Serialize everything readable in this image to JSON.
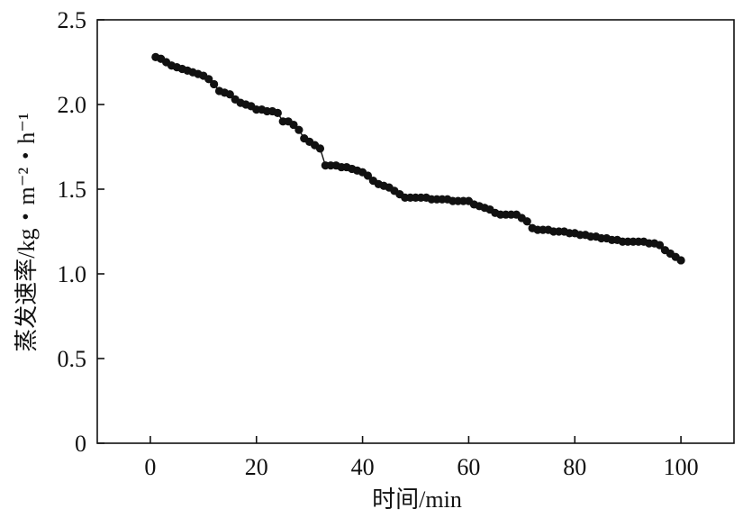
{
  "chart_data": {
    "type": "scatter",
    "xlabel": "时间/min",
    "ylabel": "蒸发速率/kg・m⁻²・h⁻¹",
    "xlim": [
      -10,
      110
    ],
    "ylim": [
      0,
      2.5
    ],
    "x_ticks": [
      0,
      20,
      40,
      60,
      80,
      100
    ],
    "y_ticks": [
      0,
      0.5,
      1.0,
      1.5,
      2.0,
      2.5
    ],
    "x_tick_labels": [
      "0",
      "20",
      "40",
      "60",
      "80",
      "100"
    ],
    "y_tick_labels": [
      "0",
      "0.5",
      "1.0",
      "1.5",
      "2.0",
      "2.5"
    ],
    "grid": false,
    "series": [
      {
        "color": "#111111",
        "marker": "circle",
        "line": true,
        "points": [
          [
            1,
            2.28
          ],
          [
            2,
            2.27
          ],
          [
            3,
            2.25
          ],
          [
            4,
            2.23
          ],
          [
            5,
            2.22
          ],
          [
            6,
            2.21
          ],
          [
            7,
            2.2
          ],
          [
            8,
            2.19
          ],
          [
            9,
            2.18
          ],
          [
            10,
            2.17
          ],
          [
            11,
            2.15
          ],
          [
            12,
            2.12
          ],
          [
            13,
            2.08
          ],
          [
            14,
            2.07
          ],
          [
            15,
            2.06
          ],
          [
            16,
            2.03
          ],
          [
            17,
            2.01
          ],
          [
            18,
            2.0
          ],
          [
            19,
            1.99
          ],
          [
            20,
            1.97
          ],
          [
            21,
            1.97
          ],
          [
            22,
            1.96
          ],
          [
            23,
            1.96
          ],
          [
            24,
            1.95
          ],
          [
            25,
            1.9
          ],
          [
            26,
            1.9
          ],
          [
            27,
            1.88
          ],
          [
            28,
            1.85
          ],
          [
            29,
            1.8
          ],
          [
            30,
            1.78
          ],
          [
            31,
            1.76
          ],
          [
            32,
            1.74
          ],
          [
            33,
            1.64
          ],
          [
            34,
            1.64
          ],
          [
            35,
            1.64
          ],
          [
            36,
            1.63
          ],
          [
            37,
            1.63
          ],
          [
            38,
            1.62
          ],
          [
            39,
            1.61
          ],
          [
            40,
            1.6
          ],
          [
            41,
            1.58
          ],
          [
            42,
            1.55
          ],
          [
            43,
            1.53
          ],
          [
            44,
            1.52
          ],
          [
            45,
            1.51
          ],
          [
            46,
            1.49
          ],
          [
            47,
            1.47
          ],
          [
            48,
            1.45
          ],
          [
            49,
            1.45
          ],
          [
            50,
            1.45
          ],
          [
            51,
            1.45
          ],
          [
            52,
            1.45
          ],
          [
            53,
            1.44
          ],
          [
            54,
            1.44
          ],
          [
            55,
            1.44
          ],
          [
            56,
            1.44
          ],
          [
            57,
            1.43
          ],
          [
            58,
            1.43
          ],
          [
            59,
            1.43
          ],
          [
            60,
            1.43
          ],
          [
            61,
            1.41
          ],
          [
            62,
            1.4
          ],
          [
            63,
            1.39
          ],
          [
            64,
            1.38
          ],
          [
            65,
            1.36
          ],
          [
            66,
            1.35
          ],
          [
            67,
            1.35
          ],
          [
            68,
            1.35
          ],
          [
            69,
            1.35
          ],
          [
            70,
            1.33
          ],
          [
            71,
            1.31
          ],
          [
            72,
            1.27
          ],
          [
            73,
            1.26
          ],
          [
            74,
            1.26
          ],
          [
            75,
            1.26
          ],
          [
            76,
            1.25
          ],
          [
            77,
            1.25
          ],
          [
            78,
            1.25
          ],
          [
            79,
            1.24
          ],
          [
            80,
            1.24
          ],
          [
            81,
            1.23
          ],
          [
            82,
            1.23
          ],
          [
            83,
            1.22
          ],
          [
            84,
            1.22
          ],
          [
            85,
            1.21
          ],
          [
            86,
            1.21
          ],
          [
            87,
            1.2
          ],
          [
            88,
            1.2
          ],
          [
            89,
            1.19
          ],
          [
            90,
            1.19
          ],
          [
            91,
            1.19
          ],
          [
            92,
            1.19
          ],
          [
            93,
            1.19
          ],
          [
            94,
            1.18
          ],
          [
            95,
            1.18
          ],
          [
            96,
            1.17
          ],
          [
            97,
            1.14
          ],
          [
            98,
            1.12
          ],
          [
            99,
            1.1
          ],
          [
            100,
            1.08
          ]
        ]
      }
    ]
  }
}
